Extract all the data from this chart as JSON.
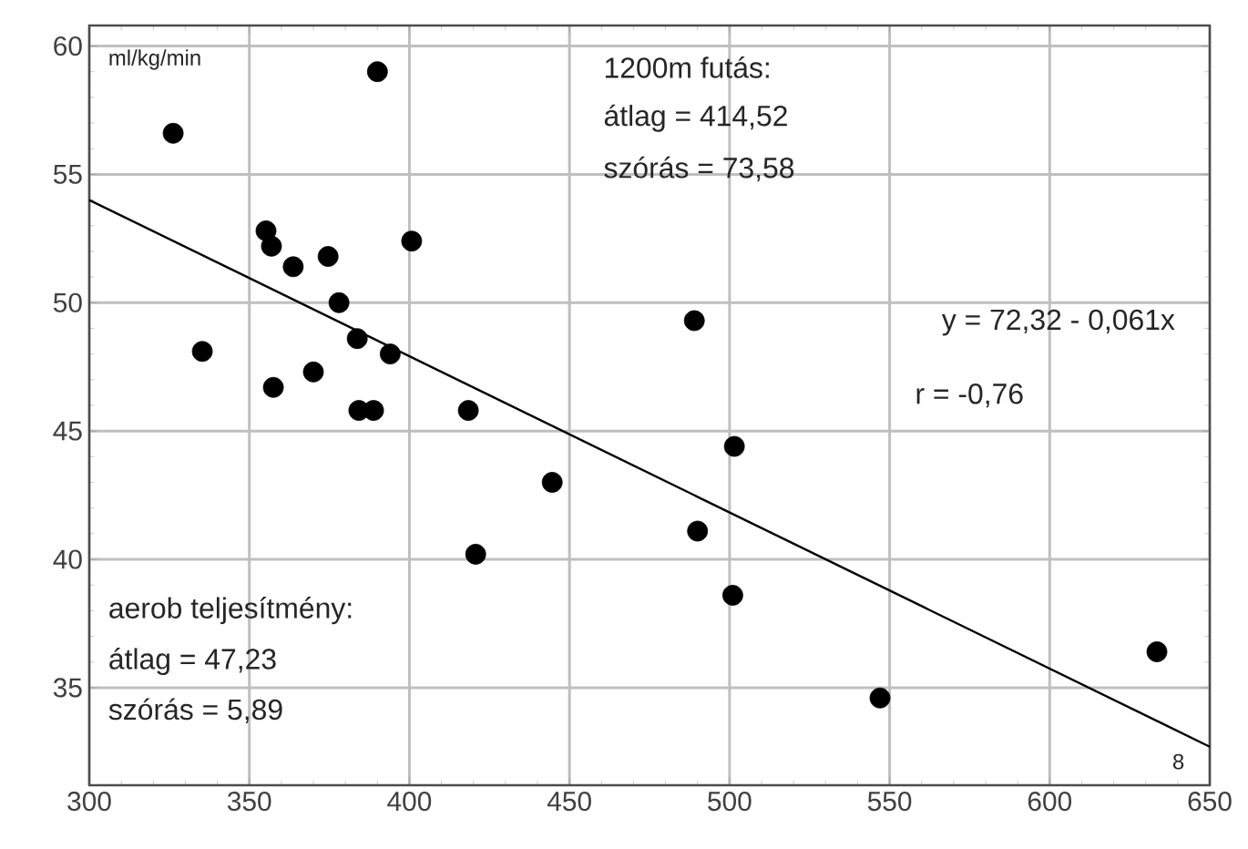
{
  "chart_data": {
    "type": "scatter",
    "xlim": [
      300,
      650
    ],
    "ylim": [
      31.2,
      60.8
    ],
    "xticks": [
      300,
      350,
      400,
      450,
      500,
      550,
      600,
      650
    ],
    "yticks": [
      35,
      40,
      45,
      50,
      55,
      60
    ],
    "grid": true,
    "marker": "circle",
    "series": [
      {
        "color": "#000000",
        "x": [
          326.2,
          335.3,
          355.2,
          356.9,
          363.7,
          357.5,
          374.6,
          378.0,
          370.0,
          383.7,
          384.2,
          388.8,
          390.0,
          394.0,
          400.7,
          418.4,
          420.7,
          444.6,
          489.0,
          501.5,
          490.0,
          501.0,
          547.0,
          633.5
        ],
        "values": [
          56.6,
          48.1,
          52.8,
          52.2,
          51.4,
          46.7,
          51.8,
          50.0,
          47.3,
          48.6,
          45.8,
          45.8,
          59.0,
          48.0,
          52.4,
          45.8,
          40.2,
          43.0,
          49.3,
          44.4,
          41.1,
          38.6,
          34.6,
          36.4
        ]
      },
      {
        "type": "line",
        "color": "#000000",
        "line_style": "solid",
        "marker": "none",
        "x": [
          300,
          650
        ],
        "values": [
          54.0,
          32.7
        ]
      }
    ],
    "annotations": [
      "ml/kg/min",
      "1200m futás:",
      "átlag = 414,52",
      "szórás = 73,58",
      "y = 72,32 - 0,061x",
      "r = -0,76",
      "aerob teljesítmény:",
      "átlag = 47,23",
      "szórás = 5,89",
      "8"
    ]
  }
}
